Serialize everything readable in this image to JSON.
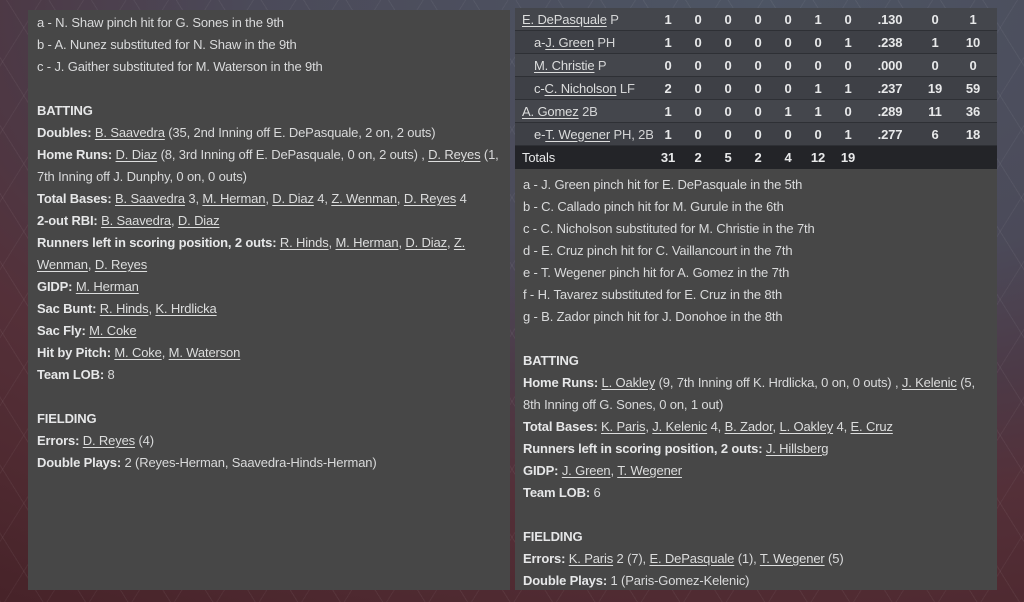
{
  "colors": {
    "panel_bg": "#474747",
    "table_row": "#3e4046",
    "table_row_alt": "#44464c",
    "totals_row": "#232428",
    "text": "#d9dadb",
    "bg_maroon": "#4f2a31",
    "bg_blue": "#4d5564"
  },
  "box_score_table": {
    "rows": [
      {
        "prefix": "",
        "name": "E. DePasquale",
        "pos": "P",
        "indent": false,
        "stats": [
          "1",
          "0",
          "0",
          "0",
          "0",
          "1",
          "0",
          ".130",
          "0",
          "1"
        ]
      },
      {
        "prefix": "a-",
        "name": "J. Green",
        "pos": "PH",
        "indent": true,
        "stats": [
          "1",
          "0",
          "0",
          "0",
          "0",
          "0",
          "1",
          ".238",
          "1",
          "10"
        ]
      },
      {
        "prefix": "",
        "name": "M. Christie",
        "pos": "P",
        "indent": true,
        "stats": [
          "0",
          "0",
          "0",
          "0",
          "0",
          "0",
          "0",
          ".000",
          "0",
          "0"
        ]
      },
      {
        "prefix": "c-",
        "name": "C. Nicholson",
        "pos": "LF",
        "indent": true,
        "stats": [
          "2",
          "0",
          "0",
          "0",
          "0",
          "1",
          "1",
          ".237",
          "19",
          "59"
        ]
      },
      {
        "prefix": "",
        "name": "A. Gomez",
        "pos": "2B",
        "indent": false,
        "stats": [
          "1",
          "0",
          "0",
          "0",
          "1",
          "1",
          "0",
          ".289",
          "11",
          "36"
        ]
      },
      {
        "prefix": "e-",
        "name": "T. Wegener",
        "pos": "PH, 2B",
        "indent": true,
        "stats": [
          "1",
          "0",
          "0",
          "0",
          "0",
          "0",
          "1",
          ".277",
          "6",
          "18"
        ]
      }
    ],
    "totals": {
      "label": "Totals",
      "stats": [
        "31",
        "2",
        "5",
        "2",
        "4",
        "12",
        "19",
        "",
        "",
        ""
      ]
    }
  },
  "left_panel": {
    "lines": [
      [
        {
          "t": "a - N. Shaw pinch hit for G. Sones in the 9th",
          "s": "p"
        }
      ],
      [
        {
          "t": "b - A. Nunez substituted for N. Shaw in the 9th",
          "s": "p"
        }
      ],
      [
        {
          "t": "c - J. Gaither substituted for M. Waterson in the 9th",
          "s": "p"
        }
      ],
      [],
      [
        {
          "t": "BATTING",
          "s": "b"
        }
      ],
      [
        {
          "t": "Doubles: ",
          "s": "b"
        },
        {
          "t": "B. Saavedra",
          "s": "u"
        },
        {
          "t": " (35, 2nd Inning off E. DePasquale, 2 on, 2 outs)",
          "s": "p"
        }
      ],
      [
        {
          "t": "Home Runs: ",
          "s": "b"
        },
        {
          "t": "D. Diaz",
          "s": "u"
        },
        {
          "t": " (8, 3rd Inning off E. DePasquale, 0 on, 2 outs) , ",
          "s": "p"
        },
        {
          "t": "D. Reyes",
          "s": "u"
        },
        {
          "t": " (1, 7th Inning off J. Dunphy, 0 on, 0 outs)",
          "s": "p"
        }
      ],
      [
        {
          "t": "Total Bases: ",
          "s": "b"
        },
        {
          "t": "B. Saavedra",
          "s": "u"
        },
        {
          "t": " 3, ",
          "s": "p"
        },
        {
          "t": "M. Herman",
          "s": "u"
        },
        {
          "t": ", ",
          "s": "p"
        },
        {
          "t": "D. Diaz",
          "s": "u"
        },
        {
          "t": " 4, ",
          "s": "p"
        },
        {
          "t": "Z. Wenman",
          "s": "u"
        },
        {
          "t": ", ",
          "s": "p"
        },
        {
          "t": "D. Reyes",
          "s": "u"
        },
        {
          "t": " 4",
          "s": "p"
        }
      ],
      [
        {
          "t": "2-out RBI: ",
          "s": "b"
        },
        {
          "t": "B. Saavedra",
          "s": "u"
        },
        {
          "t": ", ",
          "s": "p"
        },
        {
          "t": "D. Diaz",
          "s": "u"
        }
      ],
      [
        {
          "t": "Runners left in scoring position, 2 outs: ",
          "s": "b"
        },
        {
          "t": "R. Hinds",
          "s": "u"
        },
        {
          "t": ", ",
          "s": "p"
        },
        {
          "t": "M. Herman",
          "s": "u"
        },
        {
          "t": ", ",
          "s": "p"
        },
        {
          "t": "D. Diaz",
          "s": "u"
        },
        {
          "t": ", ",
          "s": "p"
        },
        {
          "t": "Z. Wenman",
          "s": "u"
        },
        {
          "t": ", ",
          "s": "p"
        },
        {
          "t": "D. Reyes",
          "s": "u"
        }
      ],
      [
        {
          "t": "GIDP: ",
          "s": "b"
        },
        {
          "t": "M. Herman",
          "s": "u"
        }
      ],
      [
        {
          "t": "Sac Bunt: ",
          "s": "b"
        },
        {
          "t": "R. Hinds",
          "s": "u"
        },
        {
          "t": ", ",
          "s": "p"
        },
        {
          "t": "K. Hrdlicka",
          "s": "u"
        }
      ],
      [
        {
          "t": "Sac Fly: ",
          "s": "b"
        },
        {
          "t": "M. Coke",
          "s": "u"
        }
      ],
      [
        {
          "t": "Hit by Pitch: ",
          "s": "b"
        },
        {
          "t": "M. Coke",
          "s": "u"
        },
        {
          "t": ", ",
          "s": "p"
        },
        {
          "t": "M. Waterson",
          "s": "u"
        }
      ],
      [
        {
          "t": "Team LOB: ",
          "s": "b"
        },
        {
          "t": "8",
          "s": "p"
        }
      ],
      [],
      [
        {
          "t": "FIELDING",
          "s": "b"
        }
      ],
      [
        {
          "t": "Errors: ",
          "s": "b"
        },
        {
          "t": "D. Reyes",
          "s": "u"
        },
        {
          "t": " (4)",
          "s": "p"
        }
      ],
      [
        {
          "t": "Double Plays: ",
          "s": "b"
        },
        {
          "t": "2 (Reyes-Herman, Saavedra-Hinds-Herman)",
          "s": "p"
        }
      ]
    ]
  },
  "right_panel": {
    "lines": [
      [
        {
          "t": "a - J. Green pinch hit for E. DePasquale in the 5th",
          "s": "p"
        }
      ],
      [
        {
          "t": "b - C. Callado pinch hit for M. Gurule in the 6th",
          "s": "p"
        }
      ],
      [
        {
          "t": "c - C. Nicholson substituted for M. Christie in the 7th",
          "s": "p"
        }
      ],
      [
        {
          "t": "d - E. Cruz pinch hit for C. Vaillancourt in the 7th",
          "s": "p"
        }
      ],
      [
        {
          "t": "e - T. Wegener pinch hit for A. Gomez in the 7th",
          "s": "p"
        }
      ],
      [
        {
          "t": "f - H. Tavarez substituted for E. Cruz in the 8th",
          "s": "p"
        }
      ],
      [
        {
          "t": "g - B. Zador pinch hit for J. Donohoe in the 8th",
          "s": "p"
        }
      ],
      [],
      [
        {
          "t": "BATTING",
          "s": "b"
        }
      ],
      [
        {
          "t": "Home Runs: ",
          "s": "b"
        },
        {
          "t": "L. Oakley",
          "s": "u"
        },
        {
          "t": " (9, 7th Inning off K. Hrdlicka, 0 on, 0 outs) , ",
          "s": "p"
        },
        {
          "t": "J. Kelenic",
          "s": "u"
        },
        {
          "t": " (5, 8th Inning off G. Sones, 0 on, 1 out)",
          "s": "p"
        }
      ],
      [
        {
          "t": "Total Bases: ",
          "s": "b"
        },
        {
          "t": "K. Paris",
          "s": "u"
        },
        {
          "t": ", ",
          "s": "p"
        },
        {
          "t": "J. Kelenic",
          "s": "u"
        },
        {
          "t": " 4, ",
          "s": "p"
        },
        {
          "t": "B. Zador",
          "s": "u"
        },
        {
          "t": ", ",
          "s": "p"
        },
        {
          "t": "L. Oakley",
          "s": "u"
        },
        {
          "t": " 4, ",
          "s": "p"
        },
        {
          "t": "E. Cruz",
          "s": "u"
        }
      ],
      [
        {
          "t": "Runners left in scoring position, 2 outs: ",
          "s": "b"
        },
        {
          "t": "J. Hillsberg",
          "s": "u"
        }
      ],
      [
        {
          "t": "GIDP: ",
          "s": "b"
        },
        {
          "t": "J. Green",
          "s": "u"
        },
        {
          "t": ", ",
          "s": "p"
        },
        {
          "t": "T. Wegener",
          "s": "u"
        }
      ],
      [
        {
          "t": "Team LOB: ",
          "s": "b"
        },
        {
          "t": "6",
          "s": "p"
        }
      ],
      [],
      [
        {
          "t": "FIELDING",
          "s": "b"
        }
      ],
      [
        {
          "t": "Errors: ",
          "s": "b"
        },
        {
          "t": "K. Paris",
          "s": "u"
        },
        {
          "t": " 2 (7), ",
          "s": "p"
        },
        {
          "t": "E. DePasquale",
          "s": "u"
        },
        {
          "t": " (1), ",
          "s": "p"
        },
        {
          "t": "T. Wegener",
          "s": "u"
        },
        {
          "t": " (5)",
          "s": "p"
        }
      ],
      [
        {
          "t": "Double Plays: ",
          "s": "b"
        },
        {
          "t": "1 (Paris-Gomez-Kelenic)",
          "s": "p"
        }
      ]
    ]
  }
}
